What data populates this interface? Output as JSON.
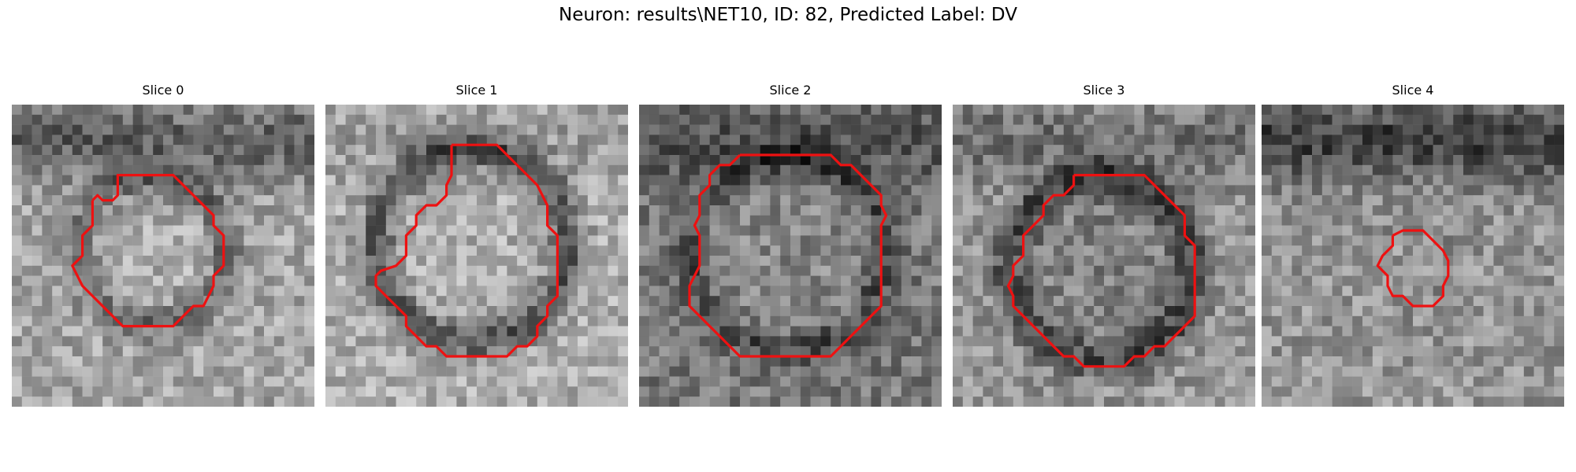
{
  "figure": {
    "title": "Neuron: results\\NET10, ID: 82, Predicted Label: DV"
  },
  "contour_color": "#ee1111",
  "colormap": "grayscale",
  "slices": [
    {
      "title": "Slice 0",
      "base": 165,
      "ring_dark": 55,
      "center_light": 10,
      "top_dark": 70
    },
    {
      "title": "Slice 1",
      "base": 175,
      "ring_dark": 90,
      "center_light": 0,
      "top_dark": 20
    },
    {
      "title": "Slice 2",
      "base": 120,
      "ring_dark": 45,
      "center_light": 15,
      "top_dark": 40
    },
    {
      "title": "Slice 3",
      "base": 150,
      "ring_dark": 80,
      "center_light": -20,
      "top_dark": 40
    },
    {
      "title": "Slice 4",
      "base": 150,
      "ring_dark": 10,
      "center_light": 5,
      "top_dark": 90
    }
  ]
}
